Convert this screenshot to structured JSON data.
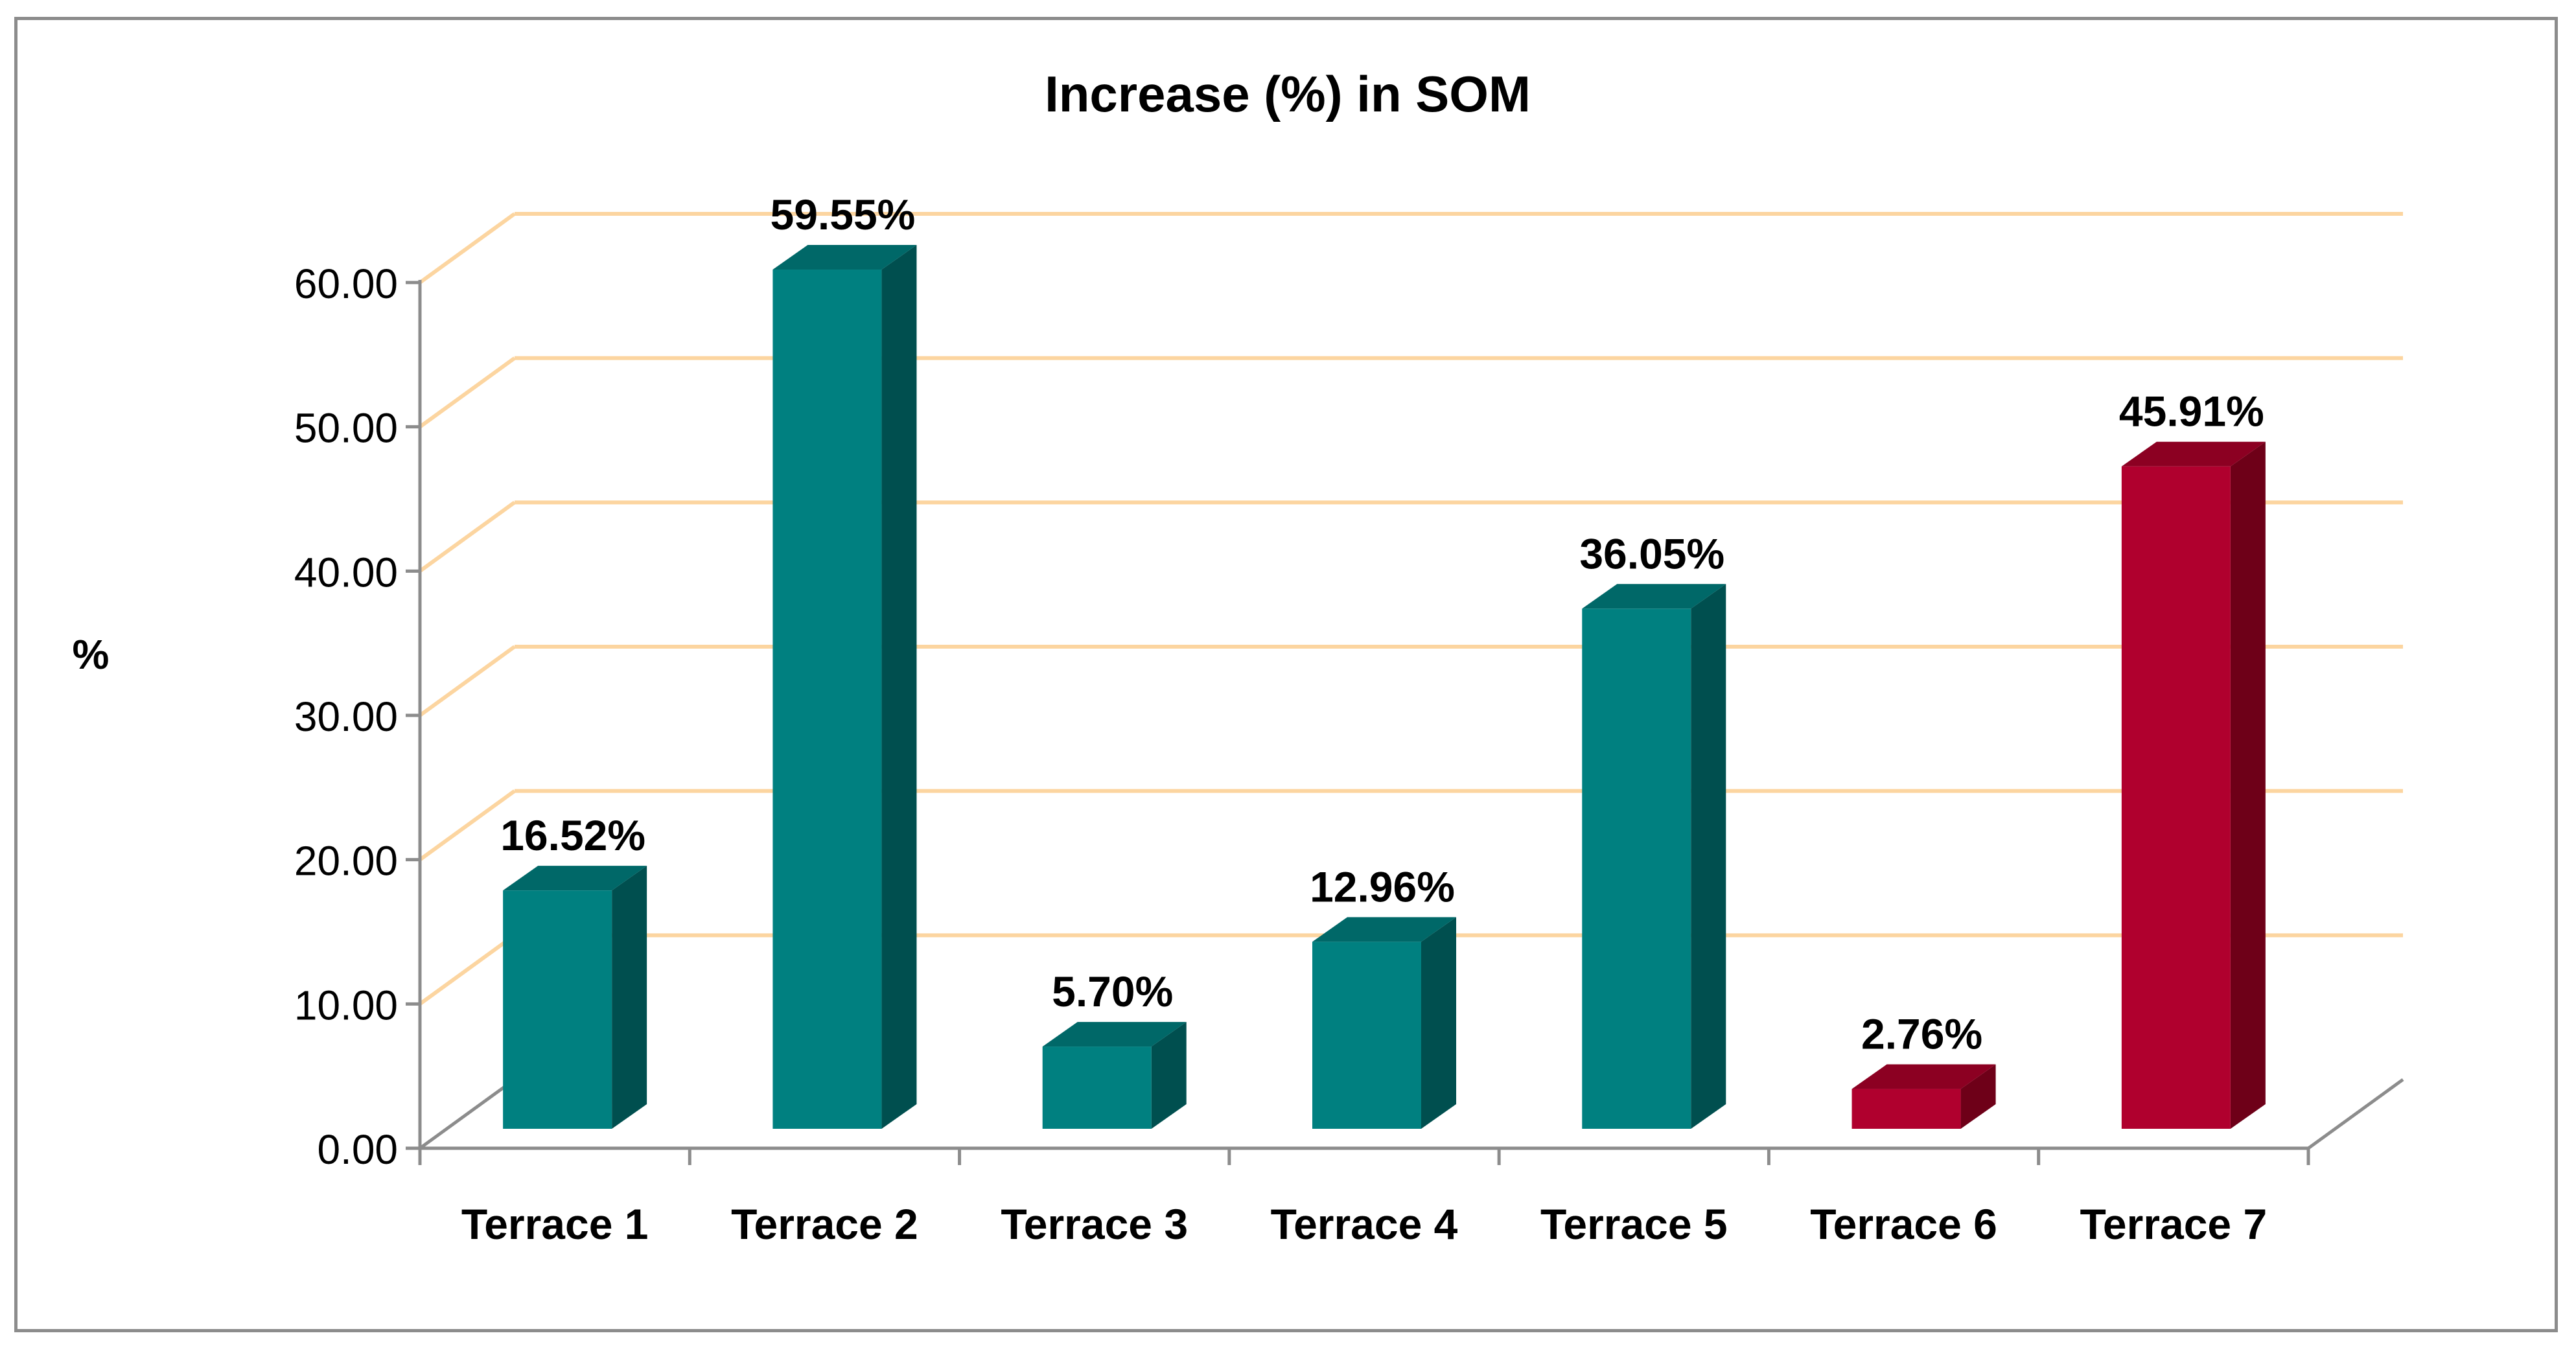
{
  "chart_data": {
    "type": "bar",
    "title": "Increase (%) in SOM",
    "xlabel": "",
    "ylabel": "%",
    "ylim": [
      0,
      60
    ],
    "yticks": [
      "0.00",
      "10.00",
      "20.00",
      "30.00",
      "40.00",
      "50.00",
      "60.00"
    ],
    "grid": true,
    "legend": "none",
    "categories": [
      "Terrace 1",
      "Terrace 2",
      "Terrace 3",
      "Terrace 4",
      "Terrace 5",
      "Terrace 6",
      "Terrace 7"
    ],
    "values": [
      16.52,
      59.55,
      5.7,
      12.96,
      36.05,
      2.76,
      45.91
    ],
    "data_labels": [
      "16.52%",
      "59.55%",
      "5.70%",
      "12.96%",
      "36.05%",
      "2.76%",
      "45.91%"
    ],
    "bar_colors": [
      "#008080",
      "#008080",
      "#008080",
      "#008080",
      "#008080",
      "#b0002e",
      "#b0002e"
    ],
    "colors": {
      "teal_front": "#008080",
      "teal_side": "#004f4f",
      "teal_top": "#006868",
      "red_front": "#b0002e",
      "red_side": "#6e0018",
      "red_top": "#8c0022",
      "gridline": "#fcd5a0",
      "axis": "#8c8c8c"
    }
  }
}
